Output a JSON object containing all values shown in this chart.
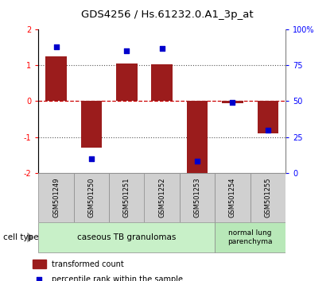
{
  "title": "GDS4256 / Hs.61232.0.A1_3p_at",
  "samples": [
    "GSM501249",
    "GSM501250",
    "GSM501251",
    "GSM501252",
    "GSM501253",
    "GSM501254",
    "GSM501255"
  ],
  "transformed_count": [
    1.25,
    -1.3,
    1.05,
    1.02,
    -2.05,
    -0.05,
    -0.9
  ],
  "percentile_rank": [
    88,
    10,
    85,
    87,
    8,
    49,
    30
  ],
  "ylim_left": [
    -2,
    2
  ],
  "ylim_right": [
    0,
    100
  ],
  "yticks_left": [
    -2,
    -1,
    0,
    1,
    2
  ],
  "yticks_right": [
    0,
    25,
    50,
    75,
    100
  ],
  "ytick_labels_right": [
    "0",
    "25",
    "50",
    "75",
    "100%"
  ],
  "bar_color": "#9B1C1C",
  "dot_color": "#0000CC",
  "group1_samples": [
    0,
    1,
    2,
    3,
    4
  ],
  "group2_samples": [
    5,
    6
  ],
  "group1_label": "caseous TB granulomas",
  "group2_label": "normal lung\nparenchyma",
  "group1_color": "#c8f0c8",
  "group2_color": "#b8e8b8",
  "sample_box_color": "#d0d0d0",
  "legend_red_label": "transformed count",
  "legend_blue_label": "percentile rank within the sample",
  "cell_type_label": "cell type",
  "hline_color_zero": "#cc0000",
  "dotted_line_color": "#555555"
}
